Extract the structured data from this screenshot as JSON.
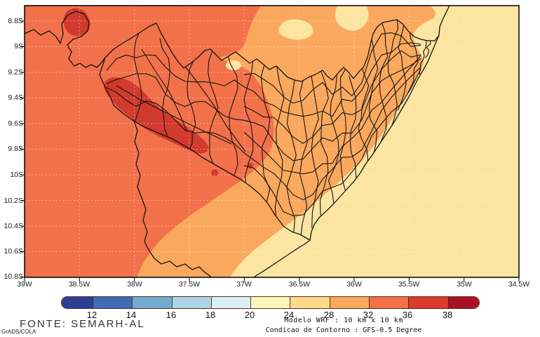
{
  "map": {
    "y_axis_labels": [
      "8.8S",
      "9S",
      "9.2S",
      "9.4S",
      "9.6S",
      "9.8S",
      "10S",
      "10.2S",
      "10.4S",
      "10.6S",
      "10.8S"
    ],
    "x_axis_labels": [
      "39W",
      "38.5W",
      "38W",
      "37.5W",
      "37W",
      "36.5W",
      "36W",
      "35.5W",
      "35W",
      "34.5W"
    ]
  },
  "colorbar": {
    "tick_labels": [
      "12",
      "14",
      "16",
      "18",
      "20",
      "24",
      "28",
      "32",
      "36",
      "38"
    ],
    "colors": [
      "#2E3D96",
      "#3E6DB5",
      "#72AAD2",
      "#ABD4E9",
      "#DAEEF6",
      "#FCF5BB",
      "#FCD98B",
      "#FAA85D",
      "#F2714A",
      "#DA3B2D",
      "#AB1126"
    ]
  },
  "map_colors": {
    "band_24_28": "#FBE5A1",
    "band_28_32": "#FAA85D",
    "band_32_36": "#F2714A",
    "band_36_38": "#D23A2E",
    "border_line": "#141414"
  },
  "annotations": {
    "source": "FONTE: SEMARH-AL",
    "credit": "GrADS/COLA",
    "model": "Modelo WRF : 10 km x 10 km",
    "boundary_condition": "Condicao de Contorno : GFS-0.5 Degree"
  }
}
